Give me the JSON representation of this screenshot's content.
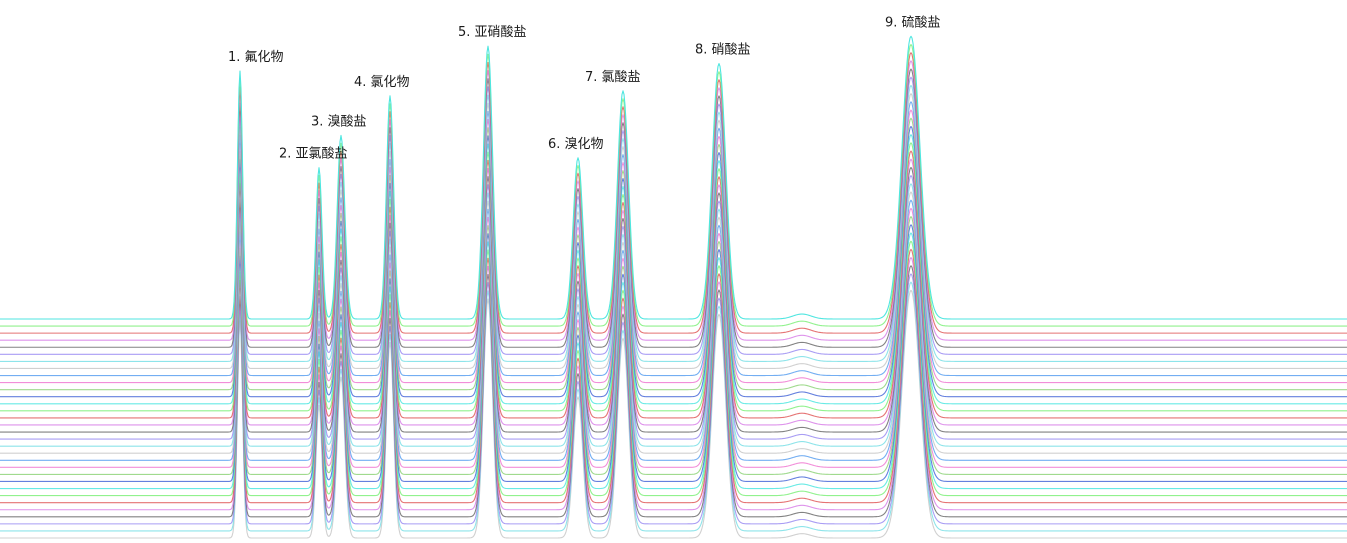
{
  "chart_data": {
    "type": "line",
    "title": "",
    "xlabel": "",
    "ylabel": "",
    "grid": false,
    "legend": "none",
    "overlay_count": 32,
    "peaks": [
      {
        "label": "1. 氟化物",
        "x": 240,
        "height": 1.0,
        "width": 2.6
      },
      {
        "label": "2. 亚氯酸盐",
        "x": 319,
        "height": 0.61,
        "width": 3.0
      },
      {
        "label": "3. 溴酸盐",
        "x": 341,
        "height": 0.74,
        "width": 3.8
      },
      {
        "label": "4. 氯化物",
        "x": 390,
        "height": 0.9,
        "width": 3.6
      },
      {
        "label": "5. 亚硝酸盐",
        "x": 488,
        "height": 1.1,
        "width": 4.6
      },
      {
        "label": "6. 溴化物",
        "x": 578,
        "height": 0.65,
        "width": 4.8
      },
      {
        "label": "7. 氯酸盐",
        "x": 623,
        "height": 0.92,
        "width": 5.6
      },
      {
        "label": "8. 硝酸盐",
        "x": 719,
        "height": 1.03,
        "width": 6.8
      },
      {
        "label": "9. 硫酸盐",
        "x": 911,
        "height": 1.14,
        "width": 9.0
      }
    ],
    "minor_peaks": [
      {
        "x": 802,
        "height": 0.02,
        "width": 9.0
      }
    ],
    "x_range": [
      0,
      1347
    ],
    "colors": [
      "#4fe6e0",
      "#7ef07a",
      "#e05a5a",
      "#d880e8",
      "#6c6c6c",
      "#9a8cf2",
      "#7adfe6",
      "#c8c8c8",
      "#5aa0f0",
      "#f07ad2",
      "#8fd47a",
      "#4a6ad8"
    ]
  }
}
